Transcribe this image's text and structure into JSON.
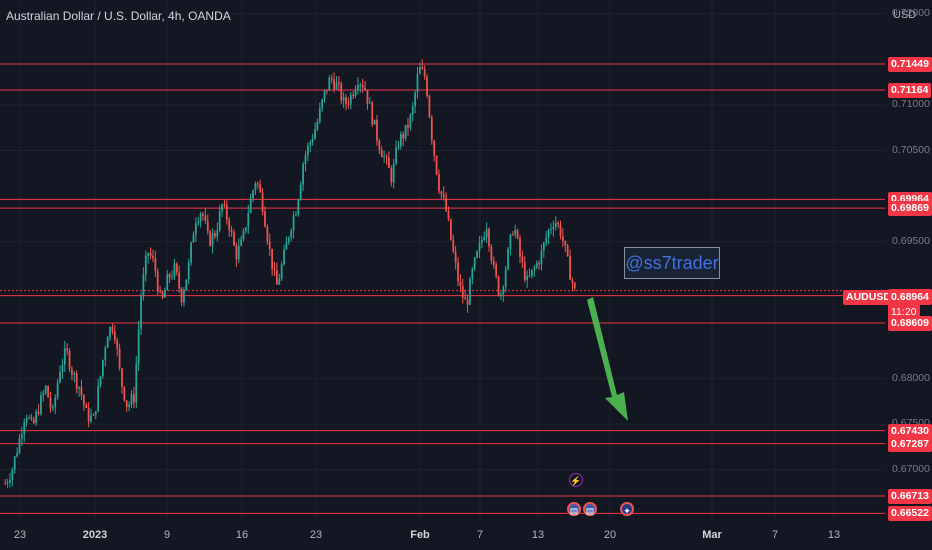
{
  "header": {
    "title": "Australian Dollar / U.S. Dollar, 4h, OANDA",
    "currency": "USD"
  },
  "watermark": "@ss7trader",
  "symbol_tag": "AUDUSD",
  "current_price": "0.68964",
  "countdown": "11:20",
  "price_axis": [
    "0.72000",
    "0.71000",
    "0.70500",
    "0.69500",
    "0.68000",
    "0.67500",
    "0.67000"
  ],
  "horizontal_levels": [
    "0.71449",
    "0.71164",
    "0.69964",
    "0.69869",
    "0.68909",
    "0.68609",
    "0.67430",
    "0.67287",
    "0.66713",
    "0.66522"
  ],
  "date_axis": [
    {
      "label": "23",
      "bold": false
    },
    {
      "label": "2023",
      "bold": true
    },
    {
      "label": "9",
      "bold": false
    },
    {
      "label": "16",
      "bold": false
    },
    {
      "label": "23",
      "bold": false
    },
    {
      "label": "Feb",
      "bold": true
    },
    {
      "label": "7",
      "bold": false
    },
    {
      "label": "13",
      "bold": false
    },
    {
      "label": "20",
      "bold": false
    },
    {
      "label": "Mar",
      "bold": true
    },
    {
      "label": "7",
      "bold": false
    },
    {
      "label": "13",
      "bold": false
    }
  ],
  "colors": {
    "background": "#131722",
    "bull": "#26a69a",
    "bear": "#ef5350",
    "level_line": "#f23645",
    "arrow": "#4caf50",
    "grid": "#1e222d"
  },
  "chart_data": {
    "type": "candlestick",
    "title": "Australian Dollar / U.S. Dollar, 4h, OANDA",
    "ylim": [
      0.6645,
      0.7215
    ],
    "close_path": [
      0.6685,
      0.67,
      0.673,
      0.6765,
      0.6745,
      0.677,
      0.679,
      0.676,
      0.681,
      0.683,
      0.6805,
      0.679,
      0.676,
      0.6755,
      0.68,
      0.685,
      0.686,
      0.68,
      0.677,
      0.678,
      0.689,
      0.694,
      0.6925,
      0.688,
      0.691,
      0.692,
      0.689,
      0.692,
      0.6975,
      0.6985,
      0.695,
      0.696,
      0.699,
      0.697,
      0.6935,
      0.695,
      0.699,
      0.702,
      0.699,
      0.694,
      0.69,
      0.693,
      0.6965,
      0.699,
      0.704,
      0.706,
      0.708,
      0.711,
      0.713,
      0.712,
      0.71,
      0.711,
      0.713,
      0.712,
      0.709,
      0.706,
      0.704,
      0.702,
      0.706,
      0.707,
      0.709,
      0.714,
      0.713,
      0.706,
      0.701,
      0.6985,
      0.694,
      0.69,
      0.688,
      0.692,
      0.6945,
      0.697,
      0.692,
      0.689,
      0.693,
      0.697,
      0.693,
      0.6905,
      0.692,
      0.6935,
      0.696,
      0.6975,
      0.696,
      0.6925,
      0.6895
    ]
  }
}
